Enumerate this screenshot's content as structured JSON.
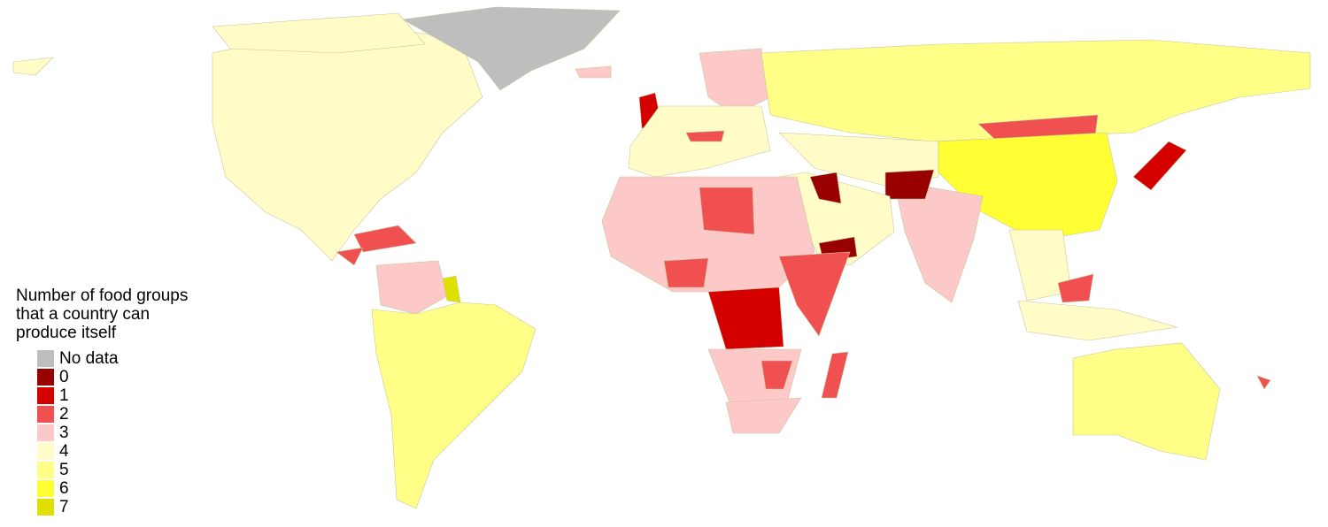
{
  "legend": {
    "title": "Number of food groups that a country can produce itself",
    "items": [
      {
        "label": "No data",
        "color": "#bebebe"
      },
      {
        "label": "0",
        "color": "#990000"
      },
      {
        "label": "1",
        "color": "#d40000"
      },
      {
        "label": "2",
        "color": "#f05050"
      },
      {
        "label": "3",
        "color": "#fcc8c8"
      },
      {
        "label": "4",
        "color": "#fffcc8"
      },
      {
        "label": "5",
        "color": "#ffff88"
      },
      {
        "label": "6",
        "color": "#ffff33"
      },
      {
        "label": "7",
        "color": "#e0e000"
      }
    ]
  }
}
